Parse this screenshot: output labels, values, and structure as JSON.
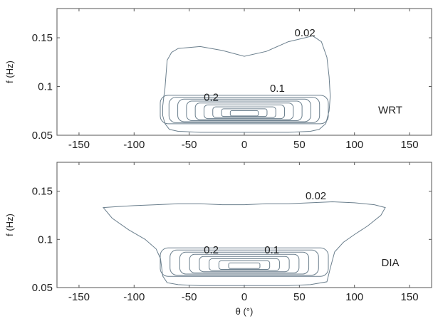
{
  "chart_data": [
    {
      "type": "contour",
      "panel_label": "WRT",
      "xlabel": "",
      "ylabel": "f (Hz)",
      "xlim": [
        -170,
        170
      ],
      "ylim": [
        0.05,
        0.18
      ],
      "xticks": [
        "-150",
        "-100",
        "-50",
        "0",
        "50",
        "100",
        "150"
      ],
      "yticks": [
        "0.05",
        "0.1",
        "0.15"
      ],
      "peak": {
        "theta": 0,
        "f": 0.072
      },
      "contour_levels": [
        0.02,
        0.1,
        0.2,
        0.3,
        0.4,
        0.5,
        0.6,
        0.7,
        0.8,
        0.9
      ],
      "contour_labels": [
        {
          "text": "0.02",
          "theta": 55,
          "f": 0.15
        },
        {
          "text": "0.2",
          "theta": -30,
          "f": 0.084
        },
        {
          "text": "0.1",
          "theta": 30,
          "f": 0.093
        }
      ],
      "outer_contour_0.02": {
        "theta": [
          -72,
          -70,
          -66,
          -60,
          -40,
          -20,
          0,
          20,
          40,
          55,
          62,
          70,
          75,
          77,
          78,
          77,
          74,
          68,
          60,
          40,
          20,
          0,
          -20,
          -40,
          -60,
          -68,
          -72,
          -74,
          -74,
          -73,
          -72
        ],
        "f": [
          0.098,
          0.127,
          0.135,
          0.139,
          0.141,
          0.137,
          0.131,
          0.136,
          0.146,
          0.15,
          0.152,
          0.146,
          0.13,
          0.11,
          0.09,
          0.075,
          0.062,
          0.056,
          0.054,
          0.053,
          0.053,
          0.053,
          0.053,
          0.053,
          0.054,
          0.056,
          0.062,
          0.07,
          0.08,
          0.09,
          0.098
        ]
      }
    },
    {
      "type": "contour",
      "panel_label": "DIA",
      "xlabel": "θ (°)",
      "ylabel": "f (Hz)",
      "xlim": [
        -170,
        170
      ],
      "ylim": [
        0.05,
        0.18
      ],
      "xticks": [
        "-150",
        "-100",
        "-50",
        "0",
        "50",
        "100",
        "150"
      ],
      "yticks": [
        "0.05",
        "0.1",
        "0.15"
      ],
      "peak": {
        "theta": 0,
        "f": 0.072
      },
      "contour_levels": [
        0.02,
        0.1,
        0.2,
        0.3,
        0.4,
        0.5,
        0.6,
        0.7,
        0.8
      ],
      "contour_labels": [
        {
          "text": "0.02",
          "theta": 65,
          "f": 0.14
        },
        {
          "text": "0.2",
          "theta": -30,
          "f": 0.084
        },
        {
          "text": "0.1",
          "theta": 25,
          "f": 0.084
        }
      ],
      "outer_contour_0.02": {
        "theta": [
          -128,
          -115,
          -100,
          -80,
          -60,
          -40,
          -20,
          0,
          20,
          40,
          60,
          80,
          100,
          118,
          128,
          124,
          112,
          100,
          90,
          82,
          78,
          75,
          60,
          40,
          20,
          0,
          -20,
          -40,
          -60,
          -70,
          -74,
          -76,
          -80,
          -90,
          -105,
          -120,
          -128
        ],
        "f": [
          0.133,
          0.134,
          0.135,
          0.136,
          0.137,
          0.137,
          0.136,
          0.136,
          0.137,
          0.137,
          0.138,
          0.139,
          0.138,
          0.136,
          0.133,
          0.125,
          0.114,
          0.105,
          0.097,
          0.087,
          0.07,
          0.056,
          0.053,
          0.052,
          0.052,
          0.052,
          0.052,
          0.052,
          0.053,
          0.055,
          0.062,
          0.08,
          0.09,
          0.1,
          0.11,
          0.122,
          0.133
        ]
      }
    }
  ]
}
